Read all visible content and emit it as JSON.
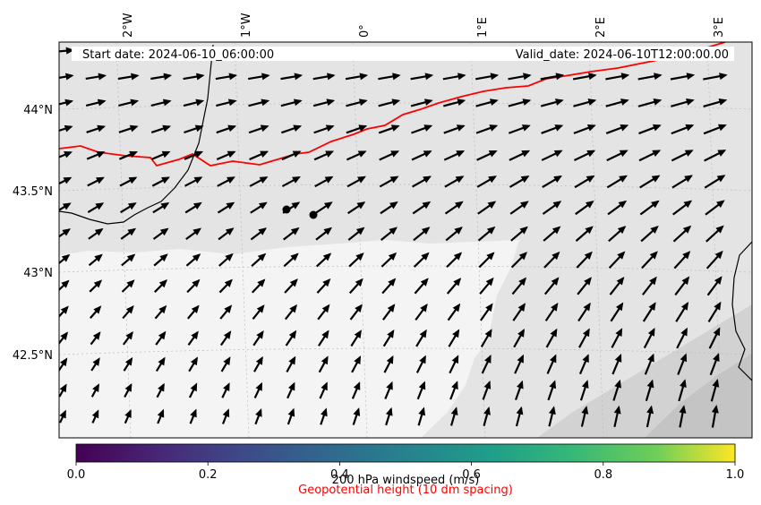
{
  "header": {
    "start_date": "Start date: 2024-06-10_06:00:00",
    "valid_date": "Valid_date: 2024-06-10T12:00:00.00"
  },
  "axes": {
    "lon_labels": [
      "2°W",
      "1°W",
      "0°",
      "1°E",
      "2°E",
      "3°E"
    ],
    "lat_labels": [
      "44°N",
      "43.5°N",
      "43°N",
      "42.5°N"
    ]
  },
  "colorbar": {
    "ticks": [
      "0.0",
      "0.2",
      "0.4",
      "0.6",
      "0.8",
      "1.0"
    ],
    "label": "200 hPa windspeed (m/s)",
    "sublabel": "Geopotential height (10 dm spacing)",
    "sublabel_color": "#ff0000"
  },
  "colors": {
    "land_shade_light": "#f4f4f4",
    "land_shade_mid": "#e4e4e4",
    "land_shade_dark": "#cfcfcf",
    "contour": "#ff0000",
    "coast": "#000000"
  },
  "arrow_icon": "wind-vector-arrow"
}
